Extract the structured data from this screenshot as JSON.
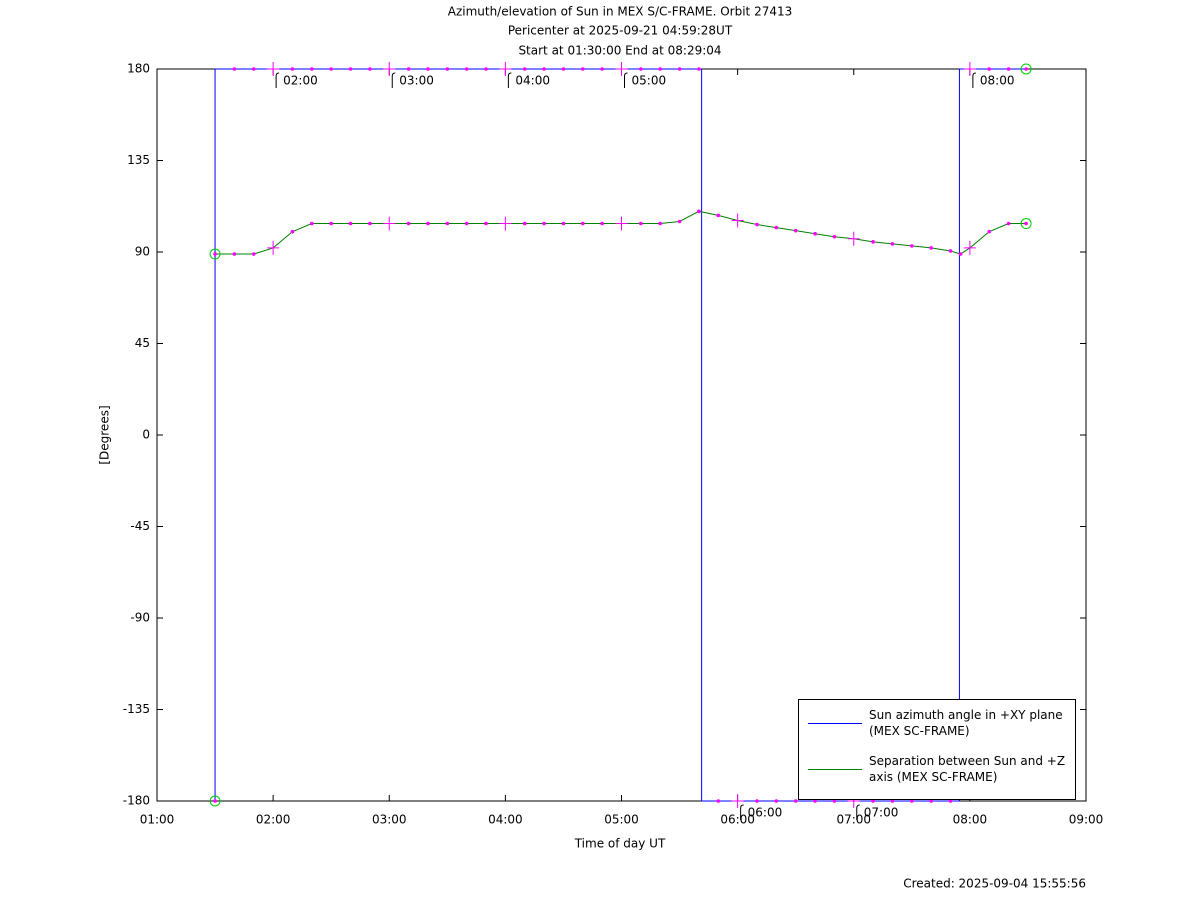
{
  "chart_data": {
    "type": "line",
    "title": [
      "Azimuth/elevation of Sun in MEX S/C-FRAME.  Orbit 27413",
      "Pericenter at 2025-09-21 04:59:28UT",
      "Start at 01:30:00 End at 08:29:04"
    ],
    "xlabel": "Time of day UT",
    "ylabel": "[Degrees]",
    "footer": "Created: 2025-09-04 15:55:56",
    "xlim": [
      1,
      9
    ],
    "xticks": [
      {
        "value": 1,
        "label": "01:00"
      },
      {
        "value": 2,
        "label": "02:00"
      },
      {
        "value": 3,
        "label": "03:00"
      },
      {
        "value": 4,
        "label": "04:00"
      },
      {
        "value": 5,
        "label": "05:00"
      },
      {
        "value": 6,
        "label": "06:00"
      },
      {
        "value": 7,
        "label": "07:00"
      },
      {
        "value": 8,
        "label": "08:00"
      },
      {
        "value": 9,
        "label": "09:00"
      }
    ],
    "ylim": [
      -180,
      180
    ],
    "yticks": [
      180,
      135,
      90,
      45,
      0,
      -45,
      -90,
      -135,
      -180
    ],
    "grid": false,
    "legend": "lower right",
    "marker_color": "#ff00ff",
    "series": [
      {
        "name": "Sun azimuth angle in +XY plane (MEX SC-FRAME)",
        "color": "#0000ff",
        "x": [
          1.5,
          1.5,
          1.6667,
          1.8333,
          2,
          2.1667,
          2.3333,
          2.5,
          2.6667,
          2.8333,
          3,
          3.1667,
          3.3333,
          3.5,
          3.6667,
          3.8333,
          4,
          4.1667,
          4.3333,
          4.5,
          4.6667,
          4.8333,
          5,
          5.1667,
          5.3333,
          5.5,
          5.6667,
          5.69,
          5.69,
          5.8333,
          6,
          6.1667,
          6.3333,
          6.5,
          6.6667,
          6.8333,
          7,
          7.1667,
          7.3333,
          7.5,
          7.6667,
          7.8333,
          7.91,
          7.91,
          8,
          8.1667,
          8.3333,
          8.4844
        ],
        "values": [
          -180,
          180,
          180,
          180,
          180,
          180,
          180,
          180,
          180,
          180,
          180,
          180,
          180,
          180,
          180,
          180,
          180,
          180,
          180,
          180,
          180,
          180,
          180,
          180,
          180,
          180,
          180,
          180,
          -180,
          -180,
          -180,
          -180,
          -180,
          -180,
          -180,
          -180,
          -180,
          -180,
          -180,
          -180,
          -180,
          -180,
          -180,
          180,
          180,
          180,
          180,
          180
        ]
      },
      {
        "name": "Separation between Sun and +Z axis (MEX SC-FRAME)",
        "color": "#008000",
        "x": [
          1.5,
          1.6667,
          1.8333,
          2,
          2.1667,
          2.3333,
          2.5,
          2.6667,
          2.8333,
          3,
          3.1667,
          3.3333,
          3.5,
          3.6667,
          3.8333,
          4,
          4.1667,
          4.3333,
          4.5,
          4.6667,
          4.8333,
          5,
          5.1667,
          5.3333,
          5.5,
          5.6667,
          5.8333,
          6,
          6.1667,
          6.3333,
          6.5,
          6.6667,
          6.8333,
          7,
          7.1667,
          7.3333,
          7.5,
          7.6667,
          7.8333,
          7.92,
          8,
          8.1667,
          8.3333,
          8.4844
        ],
        "values": [
          89,
          89,
          89,
          92,
          100,
          104,
          104,
          104,
          104,
          104,
          104,
          104,
          104,
          104,
          104,
          104,
          104,
          104,
          104,
          104,
          104,
          104,
          104,
          104,
          105,
          110,
          108,
          105.5,
          103.5,
          102,
          100.5,
          99,
          97.5,
          96.5,
          95,
          94,
          93,
          92,
          90.5,
          89,
          92,
          100,
          104,
          104
        ]
      }
    ],
    "annotations": [
      {
        "text": "02:00",
        "x": 2,
        "y": 180
      },
      {
        "text": "03:00",
        "x": 3,
        "y": 180
      },
      {
        "text": "04:00",
        "x": 4,
        "y": 180
      },
      {
        "text": "05:00",
        "x": 5,
        "y": 180
      },
      {
        "text": "06:00",
        "x": 6,
        "y": -180
      },
      {
        "text": "07:00",
        "x": 7,
        "y": -180
      },
      {
        "text": "08:00",
        "x": 8,
        "y": 180
      }
    ]
  }
}
